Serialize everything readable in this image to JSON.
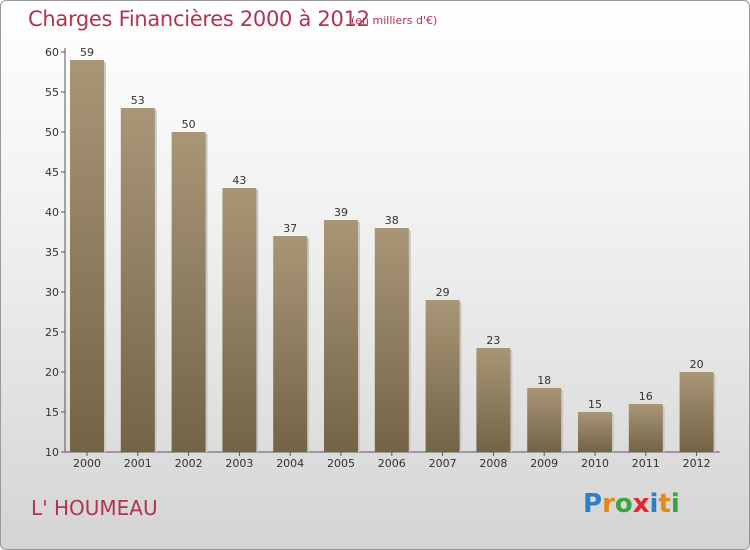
{
  "header": {
    "title": "Charges Financières 2000 à 2012",
    "subtitle": "(en milliers d'€)"
  },
  "commune": "L' HOUMEAU",
  "logo": {
    "text": "Proxiti",
    "letter_colors": [
      "#2f7fc8",
      "#e08a1e",
      "#3aa53a",
      "#e3262b",
      "#2f7fc8",
      "#e08a1e",
      "#3aa53a"
    ]
  },
  "colors": {
    "bar_top": "#a89677",
    "bar_bottom": "#746345",
    "text": "#b0344e",
    "axis": "#555555"
  },
  "chart_data": {
    "type": "bar",
    "categories": [
      "2000",
      "2001",
      "2002",
      "2003",
      "2004",
      "2005",
      "2006",
      "2007",
      "2008",
      "2009",
      "2010",
      "2011",
      "2012"
    ],
    "values": [
      59,
      53,
      50,
      43,
      37,
      39,
      38,
      29,
      23,
      18,
      15,
      16,
      20
    ],
    "ylim": [
      10,
      60
    ],
    "yticks": [
      10,
      15,
      20,
      25,
      30,
      35,
      40,
      45,
      50,
      55,
      60
    ],
    "grid": false,
    "data_labels": true
  }
}
